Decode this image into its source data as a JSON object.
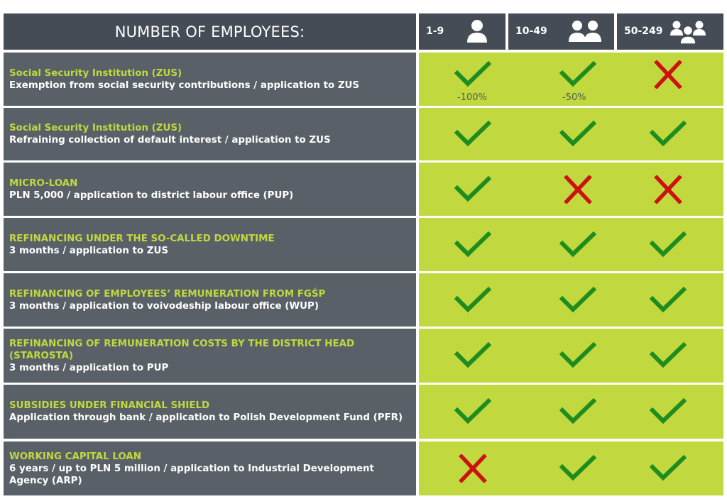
{
  "header": {
    "title": "NUMBER OF EMPLOYEES:",
    "columns": [
      {
        "label": "1-9",
        "icon": "person-icon"
      },
      {
        "label": "10-49",
        "icon": "two-people-icon"
      },
      {
        "label": "50-249",
        "icon": "group-icon"
      }
    ]
  },
  "colors": {
    "dark_row": "#596068",
    "header_dark": "#454c55",
    "green_bg": "#c1d93e",
    "check": "#1f8c1f",
    "cross": "#cc1111"
  },
  "rows": [
    {
      "title": "Social Security Institution (ZUS)",
      "desc": "Exemption from social security contributions / application to ZUS",
      "marks": [
        "check",
        "check",
        "cross"
      ],
      "notes": [
        "-100%",
        "-50%",
        ""
      ]
    },
    {
      "title": "Social Security Institution (ZUS)",
      "desc": "Refraining collection of default interest / application to ZUS",
      "marks": [
        "check",
        "check",
        "check"
      ],
      "notes": [
        "",
        "",
        ""
      ]
    },
    {
      "title": "MICRO-LOAN",
      "desc": "PLN 5,000 / application to district labour office (PUP)",
      "marks": [
        "check",
        "cross",
        "cross"
      ],
      "notes": [
        "",
        "",
        ""
      ]
    },
    {
      "title": "REFINANCING UNDER THE SO-CALLED DOWNTIME",
      "desc": "3 months / application to ZUS",
      "marks": [
        "check",
        "check",
        "check"
      ],
      "notes": [
        "",
        "",
        ""
      ]
    },
    {
      "title": "REFINANCING OF EMPLOYEES’ REMUNERATION FROM FGŚP",
      "desc": "3 months / application to voivodeship labour office (WUP)",
      "marks": [
        "check",
        "check",
        "check"
      ],
      "notes": [
        "",
        "",
        ""
      ]
    },
    {
      "title": "REFINANCING OF REMUNERATION COSTS BY THE DISTRICT HEAD (STAROSTA)",
      "desc": "3 months / application to PUP",
      "marks": [
        "check",
        "check",
        "check"
      ],
      "notes": [
        "",
        "",
        ""
      ]
    },
    {
      "title": "SUBSIDIES UNDER FINANCIAL SHIELD",
      "desc": "Application through bank / application to Polish Development Fund (PFR)",
      "marks": [
        "check",
        "check",
        "check"
      ],
      "notes": [
        "",
        "",
        ""
      ]
    },
    {
      "title": "WORKING CAPITAL LOAN",
      "desc": "6 years / up to PLN 5 million / application to Industrial Development Agency (ARP)",
      "marks": [
        "cross",
        "check",
        "check"
      ],
      "notes": [
        "",
        "",
        ""
      ]
    }
  ]
}
